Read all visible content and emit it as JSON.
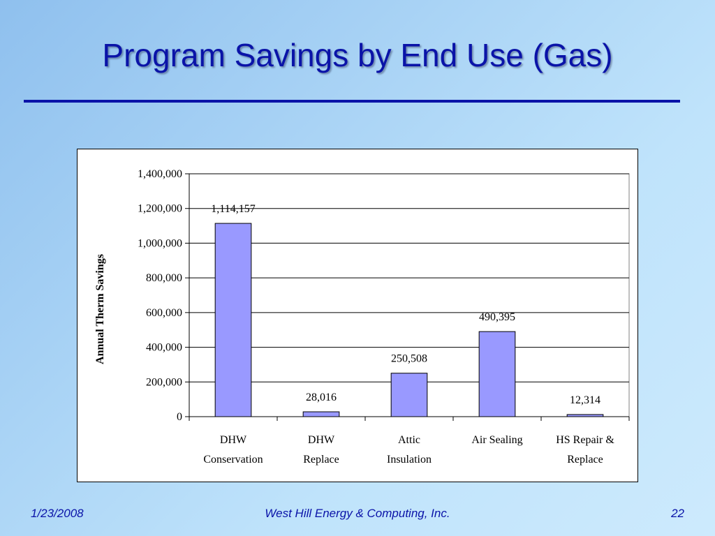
{
  "slide": {
    "title": "Program Savings by End Use (Gas)",
    "footer_date": "1/23/2008",
    "footer_company": "West Hill Energy & Computing, Inc.",
    "page_number": "22",
    "title_color": "#0a13a8"
  },
  "chart_data": {
    "type": "bar",
    "categories": [
      [
        "DHW",
        "Conservation"
      ],
      [
        "DHW",
        "Replace"
      ],
      [
        "Attic",
        "Insulation"
      ],
      [
        "Air Sealing"
      ],
      [
        "HS Repair &",
        "Replace"
      ]
    ],
    "values": [
      1114157,
      28016,
      250508,
      490395,
      12314
    ],
    "data_labels": [
      "1,114,157",
      "28,016",
      "250,508",
      "490,395",
      "12,314"
    ],
    "ylabel": "Annual Therm Savings",
    "ylim": [
      0,
      1400000
    ],
    "yticks": [
      0,
      200000,
      400000,
      600000,
      800000,
      1000000,
      1200000,
      1400000
    ],
    "ytick_labels": [
      "0",
      "200,000",
      "400,000",
      "600,000",
      "800,000",
      "1,000,000",
      "1,200,000",
      "1,400,000"
    ],
    "grid": true,
    "legend": "none",
    "bar_color": "#9999ff"
  }
}
